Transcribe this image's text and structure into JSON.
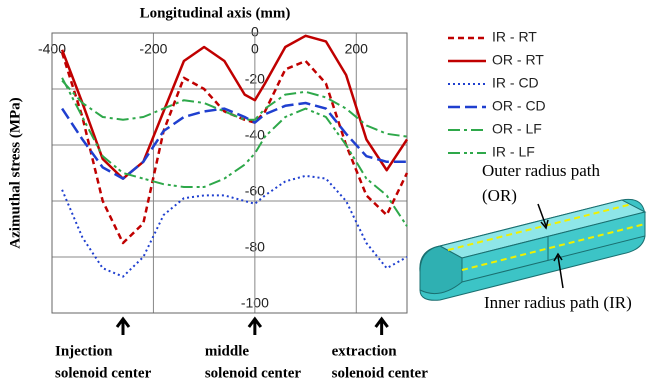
{
  "chart_data": {
    "type": "line",
    "title": "Longitudinal axis (mm)",
    "y_label": "Azimuthal stress (MPa)",
    "x": [
      -380,
      -340,
      -300,
      -260,
      -220,
      -180,
      -140,
      -100,
      -60,
      -20,
      0,
      20,
      60,
      100,
      140,
      180,
      220,
      260,
      300
    ],
    "series": [
      {
        "name": "IR - RT",
        "color": "#c00000",
        "dash": "6,4",
        "width": 2.5,
        "values": [
          -7,
          -30,
          -60,
          -75,
          -68,
          -35,
          -16,
          -20,
          -28,
          -31,
          -32,
          -28,
          -13,
          -10,
          -18,
          -40,
          -58,
          -65,
          -50
        ]
      },
      {
        "name": "OR - RT",
        "color": "#c00000",
        "dash": "",
        "width": 2.5,
        "values": [
          -6,
          -25,
          -45,
          -52,
          -46,
          -28,
          -10,
          -5,
          -10,
          -22,
          -24,
          -18,
          -5,
          -1,
          -3,
          -15,
          -38,
          -49,
          -38
        ]
      },
      {
        "name": "IR - CD",
        "color": "#1f3fcf",
        "dash": "2,3",
        "width": 2,
        "values": [
          -56,
          -73,
          -84,
          -87,
          -80,
          -65,
          -59,
          -58,
          -58,
          -60,
          -61,
          -58,
          -53,
          -51,
          -52,
          -60,
          -75,
          -84,
          -80
        ]
      },
      {
        "name": "OR - CD",
        "color": "#1f3fcf",
        "dash": "12,5",
        "width": 2.5,
        "values": [
          -27,
          -38,
          -48,
          -52,
          -46,
          -35,
          -30,
          -28,
          -27,
          -30,
          -32,
          -29,
          -26,
          -25,
          -27,
          -36,
          -44,
          -46,
          -46
        ]
      },
      {
        "name": "OR - LF",
        "color": "#2ea84a",
        "dash": "12,4,3,4",
        "width": 2,
        "values": [
          -17,
          -25,
          -30,
          -31,
          -30,
          -27,
          -24,
          -25,
          -28,
          -31,
          -31,
          -27,
          -22,
          -21,
          -23,
          -27,
          -33,
          -36,
          -37
        ]
      },
      {
        "name": "IR - LF",
        "color": "#2ea84a",
        "dash": "12,4,3,3,3,4",
        "width": 2,
        "values": [
          -16,
          -30,
          -44,
          -50,
          -52,
          -54,
          -55,
          -55,
          -52,
          -47,
          -43,
          -37,
          -30,
          -27,
          -30,
          -40,
          -52,
          -58,
          -69
        ]
      }
    ],
    "xlim": [
      -400,
      300
    ],
    "ylim": [
      -100,
      0
    ],
    "xticks": [
      -400,
      -200,
      0,
      200
    ],
    "yticks": [
      0,
      -20,
      -40,
      -60,
      -80,
      -100
    ],
    "grid": true,
    "legend": "right",
    "annotations": [
      {
        "x": -260,
        "lines": [
          "Injection",
          "solenoid center"
        ]
      },
      {
        "x": 0,
        "lines": [
          "middle",
          "solenoid center"
        ]
      },
      {
        "x": 250,
        "lines": [
          "extraction",
          "solenoid center"
        ]
      }
    ],
    "model_labels": {
      "outer": [
        "Outer radius path",
        "(OR)"
      ],
      "inner": "Inner radius path (IR)"
    }
  }
}
